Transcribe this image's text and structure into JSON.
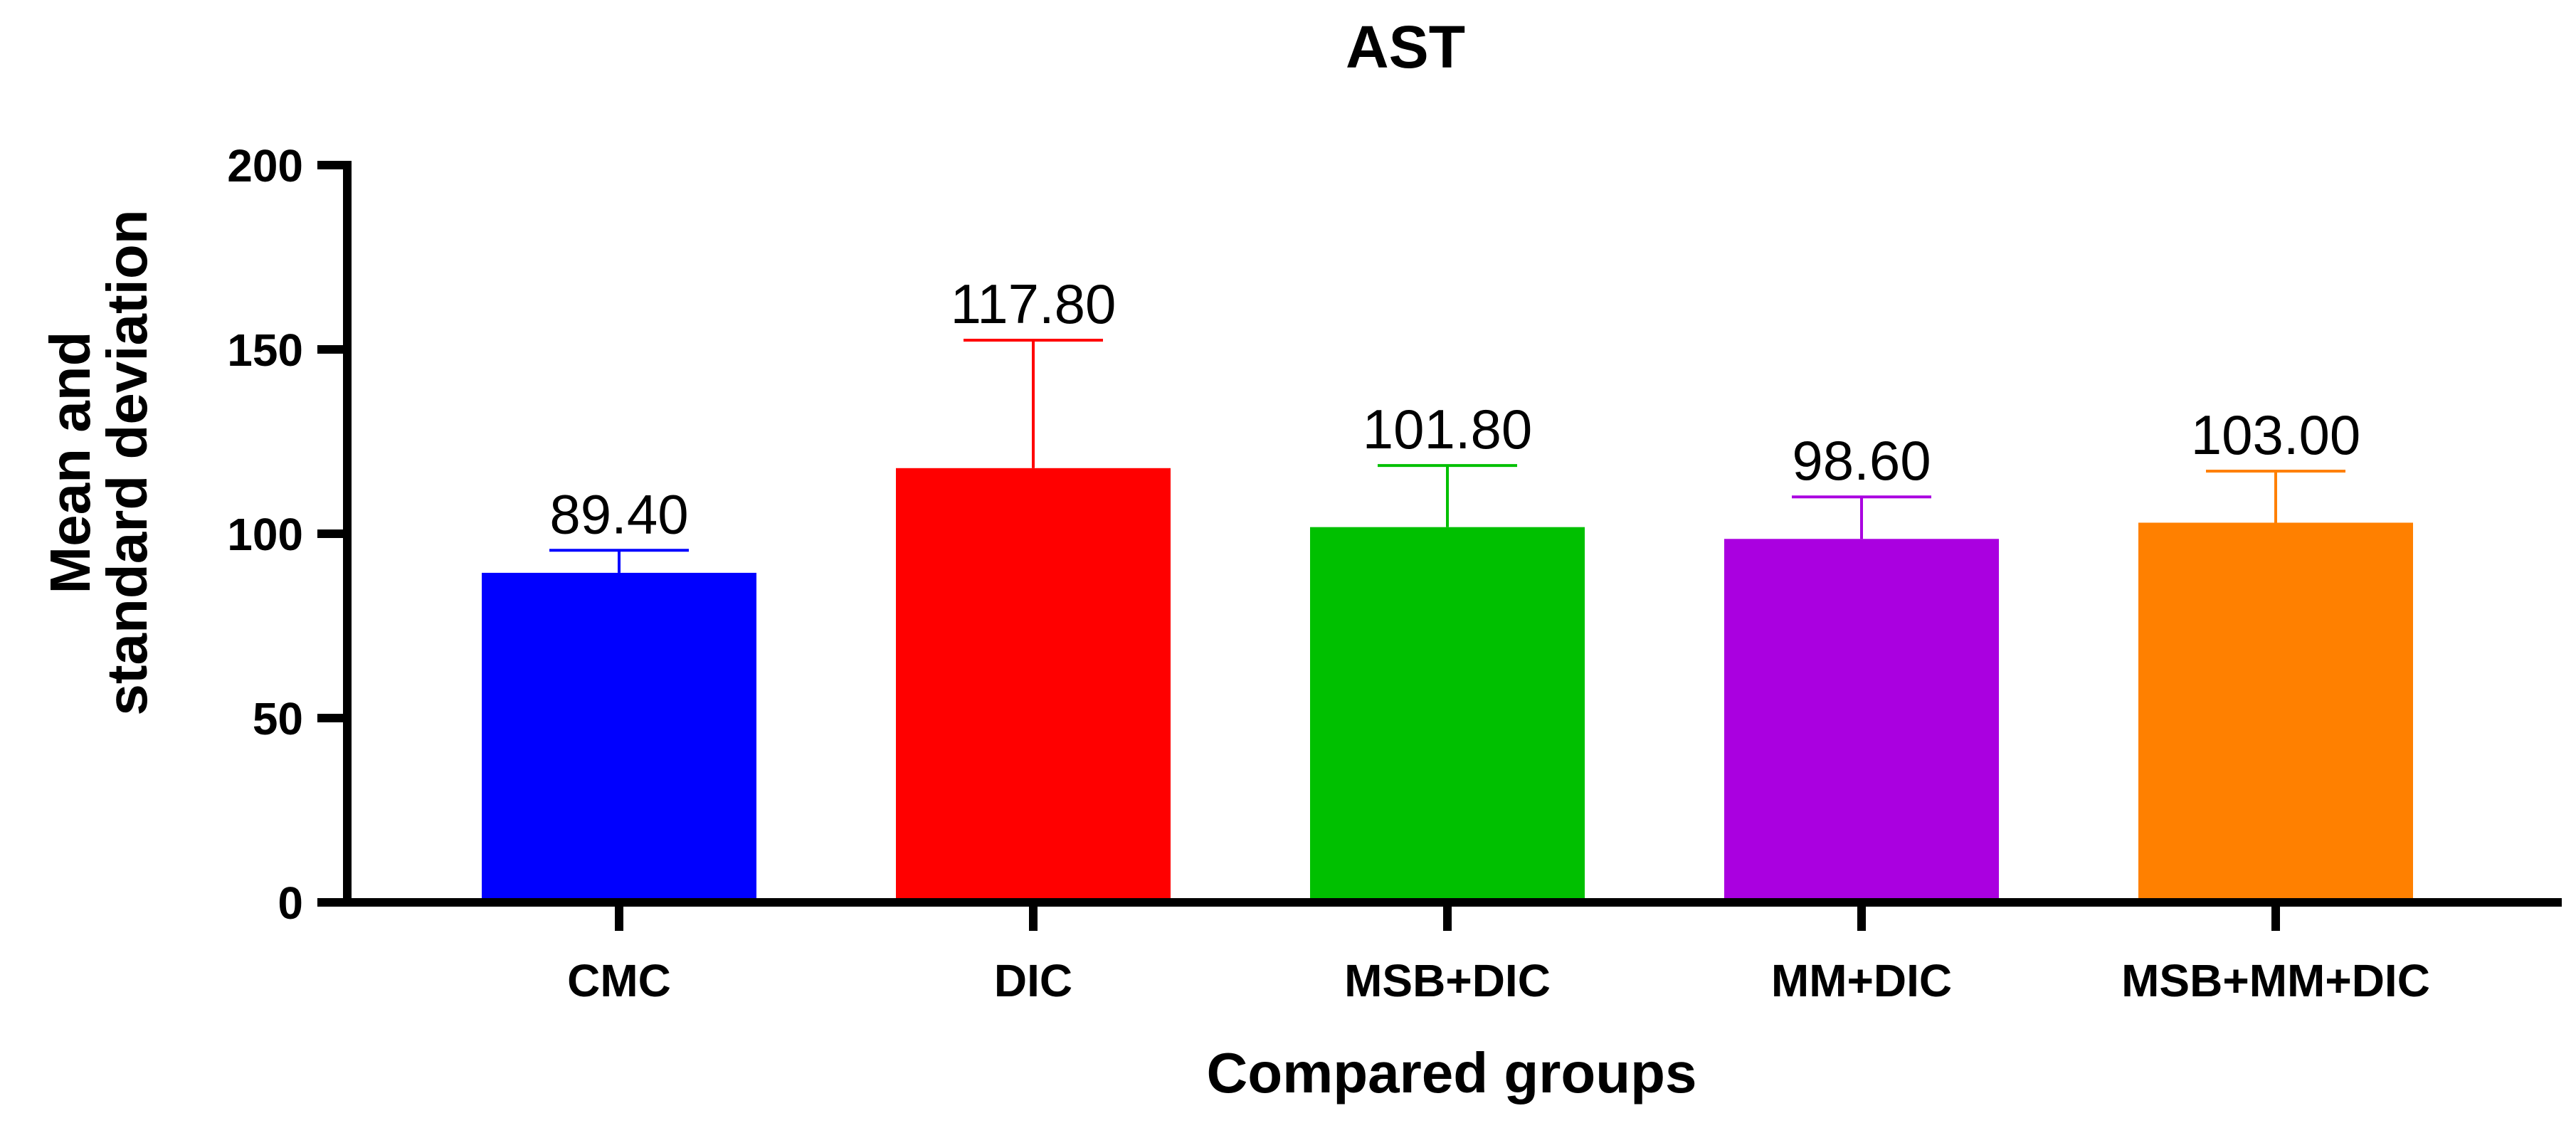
{
  "chart_data": {
    "type": "bar",
    "title": "AST",
    "xlabel": "Compared groups",
    "ylabel_lines": [
      "Mean and",
      "standard deviation"
    ],
    "categories": [
      "CMC",
      "DIC",
      "MSB+DIC",
      "MM+DIC",
      "MSB+MM+DIC"
    ],
    "values": [
      89.4,
      117.8,
      101.8,
      98.6,
      103.0
    ],
    "error_upper": [
      95.5,
      152.5,
      118.5,
      110.0,
      117.0
    ],
    "data_labels": [
      "89.40",
      "117.80",
      "101.80",
      "98.60",
      "103.00"
    ],
    "colors": [
      "#0000FF",
      "#FF0000",
      "#00C000",
      "#AA00E0",
      "#FF8000"
    ],
    "ylim": [
      0,
      200
    ],
    "yticks": [
      0,
      50,
      100,
      150,
      200
    ],
    "ytick_labels": [
      "0",
      "50",
      "100",
      "150",
      "200"
    ],
    "grid": false,
    "legend": "none"
  }
}
